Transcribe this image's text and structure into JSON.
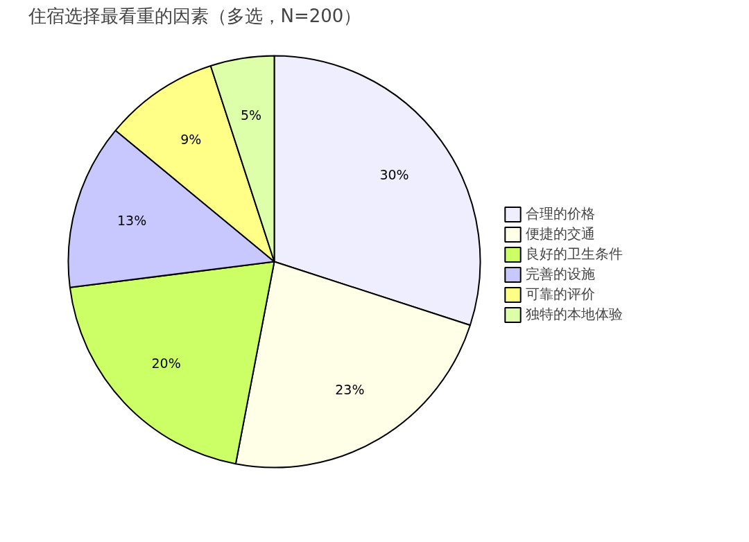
{
  "chart_data": {
    "type": "pie",
    "title": "住宿选择最看重的因素（多选，N=200）",
    "categories": [
      "合理的价格",
      "便捷的交通",
      "良好的卫生条件",
      "完善的设施",
      "可靠的评价",
      "独特的本地体验"
    ],
    "values": [
      30,
      23,
      20,
      13,
      9,
      5
    ],
    "colors": [
      "#eeeeff",
      "#ffffe8",
      "#ccff66",
      "#c8c8ff",
      "#ffff88",
      "#ddffaa"
    ],
    "value_labels": [
      "30%",
      "23%",
      "20%",
      "13%",
      "9%",
      "5%"
    ],
    "legend": "right"
  }
}
